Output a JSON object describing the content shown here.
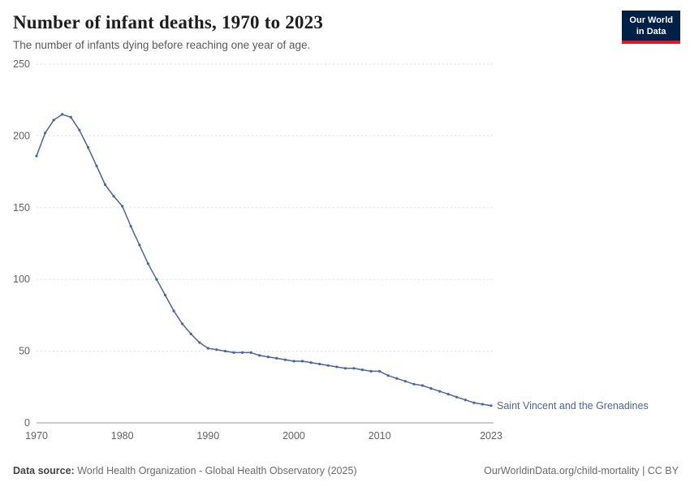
{
  "header": {
    "title": "Number of infant deaths, 1970 to 2023",
    "subtitle": "The number of infants dying before reaching one year of age.",
    "logo": {
      "line1": "Our World",
      "line2": "in Data",
      "bg_color": "#002147",
      "accent_color": "#e0162b"
    }
  },
  "chart_data": {
    "type": "line",
    "title": "Number of infant deaths, 1970 to 2023",
    "entity_label": "Saint Vincent and the Grenadines",
    "line_color": "#4a64a1",
    "grid": true,
    "grid_color": "#dedede",
    "zero_line_color": "#9a9a9a",
    "legend_position": "end-of-line",
    "xlim": [
      1970,
      2023
    ],
    "ylim": [
      0,
      250
    ],
    "yticks": [
      0,
      50,
      100,
      150,
      200,
      250
    ],
    "xticks": [
      1970,
      1980,
      1990,
      2000,
      2010,
      2023
    ],
    "series": [
      {
        "name": "Saint Vincent and the Grenadines",
        "x": [
          1970,
          1971,
          1972,
          1973,
          1974,
          1975,
          1976,
          1977,
          1978,
          1979,
          1980,
          1981,
          1982,
          1983,
          1984,
          1985,
          1986,
          1987,
          1988,
          1989,
          1990,
          1991,
          1992,
          1993,
          1994,
          1995,
          1996,
          1997,
          1998,
          1999,
          2000,
          2001,
          2002,
          2003,
          2004,
          2005,
          2006,
          2007,
          2008,
          2009,
          2010,
          2011,
          2012,
          2013,
          2014,
          2015,
          2016,
          2017,
          2018,
          2019,
          2020,
          2021,
          2022,
          2023
        ],
        "values": [
          186,
          202,
          211,
          215,
          213,
          204,
          192,
          179,
          166,
          158,
          151,
          137,
          124,
          111,
          100,
          89,
          78,
          69,
          62,
          56,
          52,
          51,
          50,
          49,
          49,
          49,
          47,
          46,
          45,
          44,
          43,
          43,
          42,
          41,
          40,
          39,
          38,
          38,
          37,
          36,
          36,
          33,
          31,
          29,
          27,
          26,
          24,
          22,
          20,
          18,
          16,
          14,
          13,
          12
        ]
      }
    ]
  },
  "footer": {
    "source_label": "Data source:",
    "source_text": " World Health Organization - Global Health Observatory (2025)",
    "right_text": "OurWorldinData.org/child-mortality | CC BY"
  }
}
